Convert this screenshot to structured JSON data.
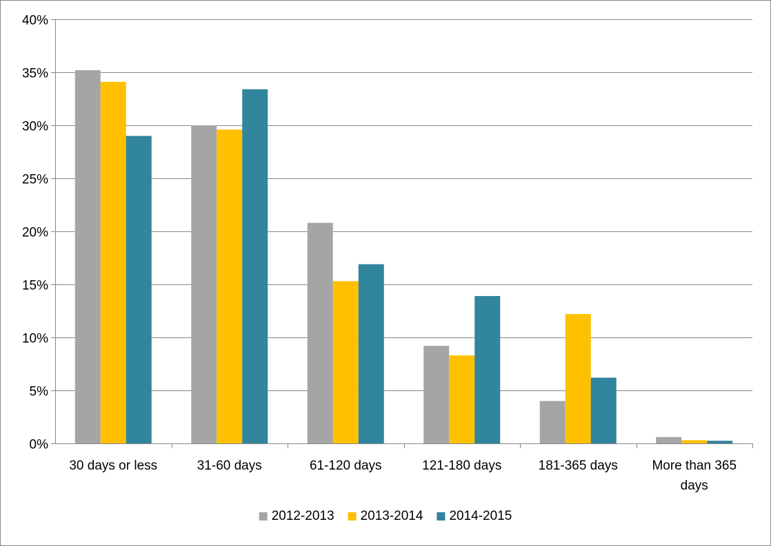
{
  "chart_data": {
    "type": "bar",
    "title": "",
    "xlabel": "",
    "ylabel": "",
    "ylim": [
      0,
      40
    ],
    "y_ticks": [
      "0%",
      "5%",
      "10%",
      "15%",
      "20%",
      "25%",
      "30%",
      "35%",
      "40%"
    ],
    "y_tick_values": [
      0,
      5,
      10,
      15,
      20,
      25,
      30,
      35,
      40
    ],
    "grid": true,
    "legend_position": "bottom",
    "categories": [
      "30 days or less",
      "31-60 days",
      "61-120 days",
      "121-180 days",
      "181-365 days",
      "More than 365 days"
    ],
    "series": [
      {
        "name": "2012-2013",
        "color": "#A5A5A5",
        "values": [
          35.2,
          30.0,
          20.8,
          9.2,
          4.0,
          0.6
        ]
      },
      {
        "name": "2013-2014",
        "color": "#FFC000",
        "values": [
          34.1,
          29.6,
          15.3,
          8.3,
          12.2,
          0.3
        ]
      },
      {
        "name": "2014-2015",
        "color": "#31859C",
        "values": [
          29.0,
          33.4,
          16.9,
          13.9,
          6.2,
          0.25
        ]
      }
    ]
  }
}
